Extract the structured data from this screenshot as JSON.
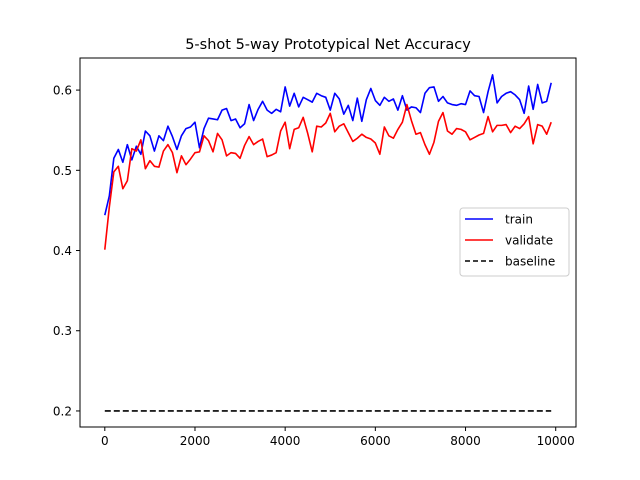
{
  "chart_data": {
    "type": "line",
    "title": "5-shot 5-way Prototypical Net Accuracy",
    "xlabel": "",
    "ylabel": "",
    "xlim": [
      -550,
      10450
    ],
    "ylim": [
      0.18,
      0.64
    ],
    "x_ticks": [
      0,
      2000,
      4000,
      6000,
      8000,
      10000
    ],
    "x_tick_labels": [
      "0",
      "2000",
      "4000",
      "6000",
      "8000",
      "10000"
    ],
    "y_ticks": [
      0.2,
      0.3,
      0.4,
      0.5,
      0.6
    ],
    "y_tick_labels": [
      "0.2",
      "0.3",
      "0.4",
      "0.5",
      "0.6"
    ],
    "grid": false,
    "legend_position": "center-right",
    "series": [
      {
        "name": "train",
        "color": "#0000ff",
        "style": "solid",
        "x": [
          0,
          100,
          200,
          300,
          400,
          500,
          600,
          700,
          800,
          900,
          1000,
          1100,
          1200,
          1300,
          1400,
          1500,
          1600,
          1700,
          1800,
          1900,
          2000,
          2100,
          2200,
          2300,
          2400,
          2500,
          2600,
          2700,
          2800,
          2900,
          3000,
          3100,
          3200,
          3300,
          3400,
          3500,
          3600,
          3700,
          3800,
          3900,
          4000,
          4100,
          4200,
          4300,
          4400,
          4500,
          4600,
          4700,
          4800,
          4900,
          5000,
          5100,
          5200,
          5300,
          5400,
          5500,
          5600,
          5700,
          5800,
          5900,
          6000,
          6100,
          6200,
          6300,
          6400,
          6500,
          6600,
          6700,
          6800,
          6900,
          7000,
          7100,
          7200,
          7300,
          7400,
          7500,
          7600,
          7700,
          7800,
          7900,
          8000,
          8100,
          8200,
          8300,
          8400,
          8500,
          8600,
          8700,
          8800,
          8900,
          9000,
          9100,
          9200,
          9300,
          9400,
          9500,
          9600,
          9700,
          9800,
          9900
        ],
        "y": [
          0.444,
          0.468,
          0.515,
          0.526,
          0.51,
          0.532,
          0.513,
          0.53,
          0.52,
          0.549,
          0.543,
          0.524,
          0.543,
          0.537,
          0.555,
          0.542,
          0.526,
          0.543,
          0.552,
          0.554,
          0.56,
          0.528,
          0.552,
          0.565,
          0.564,
          0.563,
          0.575,
          0.577,
          0.562,
          0.564,
          0.553,
          0.558,
          0.582,
          0.562,
          0.576,
          0.586,
          0.575,
          0.571,
          0.576,
          0.573,
          0.604,
          0.58,
          0.596,
          0.579,
          0.591,
          0.588,
          0.585,
          0.596,
          0.593,
          0.591,
          0.575,
          0.596,
          0.589,
          0.57,
          0.581,
          0.562,
          0.59,
          0.561,
          0.588,
          0.602,
          0.587,
          0.581,
          0.591,
          0.586,
          0.589,
          0.575,
          0.593,
          0.575,
          0.579,
          0.578,
          0.572,
          0.596,
          0.603,
          0.604,
          0.586,
          0.592,
          0.584,
          0.582,
          0.581,
          0.583,
          0.582,
          0.599,
          0.593,
          0.592,
          0.572,
          0.598,
          0.619,
          0.584,
          0.592,
          0.596,
          0.598,
          0.594,
          0.588,
          0.571,
          0.605,
          0.576,
          0.607,
          0.584,
          0.586,
          0.609
        ]
      },
      {
        "name": "validate",
        "color": "#ff0000",
        "style": "solid",
        "x": [
          0,
          100,
          200,
          300,
          400,
          500,
          600,
          700,
          800,
          900,
          1000,
          1100,
          1200,
          1300,
          1400,
          1500,
          1600,
          1700,
          1800,
          1900,
          2000,
          2100,
          2200,
          2300,
          2400,
          2500,
          2600,
          2700,
          2800,
          2900,
          3000,
          3100,
          3200,
          3300,
          3400,
          3500,
          3600,
          3700,
          3800,
          3900,
          4000,
          4100,
          4200,
          4300,
          4400,
          4500,
          4600,
          4700,
          4800,
          4900,
          5000,
          5100,
          5200,
          5300,
          5400,
          5500,
          5600,
          5700,
          5800,
          5900,
          6000,
          6100,
          6200,
          6300,
          6400,
          6500,
          6600,
          6700,
          6800,
          6900,
          7000,
          7100,
          7200,
          7300,
          7400,
          7500,
          7600,
          7700,
          7800,
          7900,
          8000,
          8100,
          8200,
          8300,
          8400,
          8500,
          8600,
          8700,
          8800,
          8900,
          9000,
          9100,
          9200,
          9300,
          9400,
          9500,
          9600,
          9700,
          9800,
          9900
        ],
        "y": [
          0.401,
          0.454,
          0.498,
          0.505,
          0.477,
          0.487,
          0.527,
          0.524,
          0.538,
          0.502,
          0.512,
          0.505,
          0.504,
          0.524,
          0.532,
          0.522,
          0.497,
          0.518,
          0.507,
          0.514,
          0.522,
          0.523,
          0.543,
          0.537,
          0.523,
          0.546,
          0.538,
          0.518,
          0.522,
          0.521,
          0.515,
          0.531,
          0.542,
          0.532,
          0.536,
          0.539,
          0.517,
          0.519,
          0.522,
          0.549,
          0.56,
          0.527,
          0.551,
          0.553,
          0.566,
          0.546,
          0.523,
          0.555,
          0.554,
          0.559,
          0.571,
          0.548,
          0.555,
          0.558,
          0.547,
          0.536,
          0.54,
          0.545,
          0.541,
          0.539,
          0.534,
          0.52,
          0.554,
          0.543,
          0.54,
          0.551,
          0.56,
          0.582,
          0.562,
          0.545,
          0.547,
          0.532,
          0.52,
          0.535,
          0.561,
          0.572,
          0.549,
          0.545,
          0.552,
          0.551,
          0.548,
          0.538,
          0.541,
          0.544,
          0.546,
          0.567,
          0.548,
          0.556,
          0.556,
          0.557,
          0.547,
          0.555,
          0.552,
          0.558,
          0.567,
          0.533,
          0.557,
          0.555,
          0.545,
          0.56
        ]
      },
      {
        "name": "baseline",
        "color": "#000000",
        "style": "dashed",
        "x": [
          0,
          9900
        ],
        "y": [
          0.2,
          0.2
        ]
      }
    ]
  }
}
